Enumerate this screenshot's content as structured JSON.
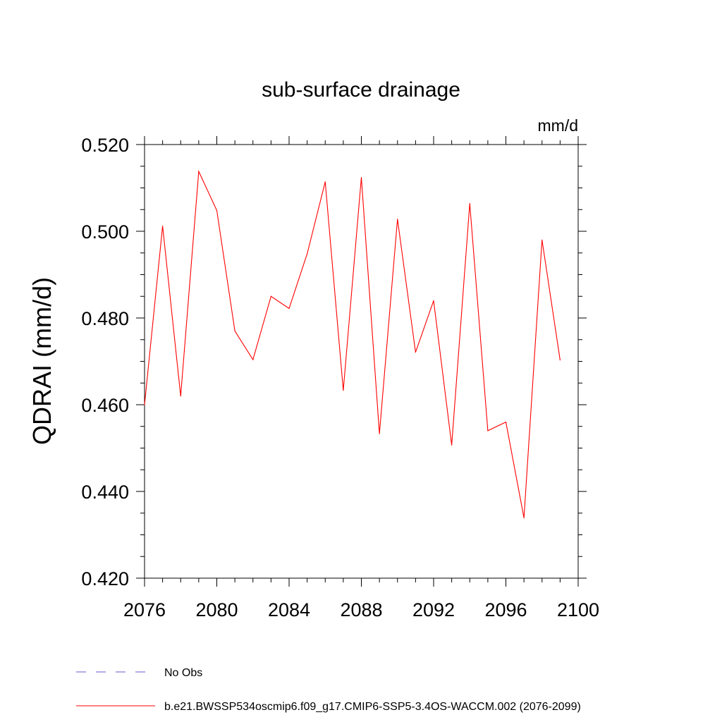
{
  "chart_data": {
    "type": "line",
    "title": "sub-surface drainage",
    "units": "mm/d",
    "xlabel": "",
    "ylabel": "QDRAI  (mm/d)",
    "xlim": [
      2076,
      2100
    ],
    "ylim": [
      0.42,
      0.52
    ],
    "xticks": [
      2076,
      2080,
      2084,
      2088,
      2092,
      2096,
      2100
    ],
    "xtick_labels": [
      "2076",
      "2080",
      "2084",
      "2088",
      "2092",
      "2096",
      "2100"
    ],
    "yticks": [
      0.42,
      0.44,
      0.46,
      0.48,
      0.5,
      0.52
    ],
    "ytick_labels": [
      "0.420",
      "0.440",
      "0.460",
      "0.480",
      "0.500",
      "0.520"
    ],
    "grid": false,
    "legend_position": "bottom-left",
    "series": [
      {
        "name": "No Obs",
        "color": "#6a5acd",
        "style": "dashed",
        "x": [],
        "values": []
      },
      {
        "name": "b.e21.BWSSP534oscmip6.f09_g17.CMIP6-SSP5-3.4OS-WACCM.002 (2076-2099)",
        "color": "#ff0000",
        "style": "solid",
        "x": [
          2076,
          2077,
          2078,
          2079,
          2080,
          2081,
          2082,
          2083,
          2084,
          2085,
          2086,
          2087,
          2088,
          2089,
          2090,
          2091,
          2092,
          2093,
          2094,
          2095,
          2096,
          2097,
          2098,
          2099
        ],
        "values": [
          0.46,
          0.5012,
          0.462,
          0.5138,
          0.5048,
          0.477,
          0.4704,
          0.485,
          0.4822,
          0.4948,
          0.5114,
          0.4633,
          0.5124,
          0.4533,
          0.5028,
          0.4721,
          0.484,
          0.4507,
          0.5064,
          0.454,
          0.456,
          0.4339,
          0.498,
          0.4703
        ]
      }
    ]
  }
}
